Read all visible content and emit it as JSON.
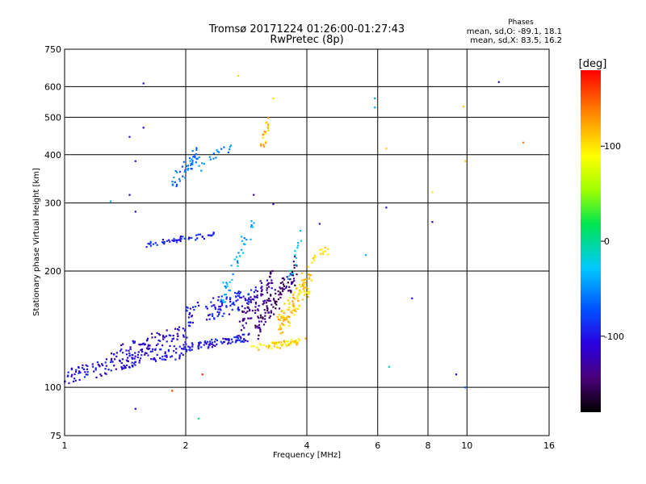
{
  "chart_data": {
    "type": "scatter",
    "title": "Tromsø 20171224 01:26:00-01:27:43",
    "subtitle": "RwPretec (8p)",
    "xlabel": "Frequency [MHz]",
    "ylabel": "Stationary phase Virtual Height [km]",
    "xscale": "log",
    "yscale": "log",
    "xlim": [
      1,
      16
    ],
    "ylim": [
      75,
      750
    ],
    "x_ticks": [
      1,
      2,
      4,
      6,
      8,
      10,
      16
    ],
    "x_tick_labels": [
      "1",
      "2",
      "4",
      "6",
      "8",
      "10",
      "16"
    ],
    "y_ticks": [
      75,
      100,
      200,
      300,
      400,
      500,
      600,
      750
    ],
    "y_tick_labels": [
      "75",
      "100",
      "200",
      "300",
      "400",
      "500",
      "600",
      "750"
    ],
    "grid": true,
    "stats": {
      "title": "Phases",
      "line_o": "mean, sd,O: -89.1, 18.1",
      "line_x": "mean, sd,X:  83.5, 16.2"
    },
    "colorbar": {
      "label": "[deg]",
      "range": [
        -180,
        180
      ],
      "ticks": [
        100,
        0,
        -100
      ],
      "tick_labels": [
        "100",
        "0",
        "-100"
      ],
      "placement": "right"
    },
    "traces": [
      {
        "x0": 1.0,
        "x1": 2.0,
        "h0": 105,
        "h1": 128,
        "phase": -105,
        "n": 150,
        "jit": 0.045
      },
      {
        "x0": 1.3,
        "x1": 2.0,
        "h0": 118,
        "h1": 142,
        "phase": -110,
        "n": 90,
        "jit": 0.05
      },
      {
        "x0": 2.0,
        "x1": 2.9,
        "h0": 126,
        "h1": 136,
        "phase": -100,
        "n": 90,
        "jit": 0.02
      },
      {
        "x0": 2.0,
        "x1": 3.0,
        "h0": 150,
        "h1": 175,
        "phase": -95,
        "n": 110,
        "jit": 0.06
      },
      {
        "x0": 1.58,
        "x1": 2.35,
        "h0": 234,
        "h1": 250,
        "phase": -95,
        "n": 55,
        "jit": 0.015
      },
      {
        "x0": 1.85,
        "x1": 2.15,
        "h0": 330,
        "h1": 410,
        "phase": -60,
        "n": 45,
        "jit": 0.04
      },
      {
        "x0": 2.15,
        "x1": 2.6,
        "h0": 370,
        "h1": 430,
        "phase": -55,
        "n": 18,
        "jit": 0.03
      },
      {
        "x0": 2.45,
        "x1": 2.95,
        "h0": 160,
        "h1": 280,
        "phase": -40,
        "n": 40,
        "jit": 0.05
      },
      {
        "x0": 2.7,
        "x1": 3.3,
        "h0": 140,
        "h1": 200,
        "phase": -135,
        "n": 70,
        "jit": 0.06
      },
      {
        "x0": 3.0,
        "x1": 3.8,
        "h0": 140,
        "h1": 210,
        "phase": -145,
        "n": 110,
        "jit": 0.07
      },
      {
        "x0": 2.9,
        "x1": 4.0,
        "h0": 126,
        "h1": 132,
        "phase": 105,
        "n": 60,
        "jit": 0.02
      },
      {
        "x0": 3.4,
        "x1": 4.1,
        "h0": 140,
        "h1": 200,
        "phase": 110,
        "n": 110,
        "jit": 0.07
      },
      {
        "x0": 4.1,
        "x1": 4.5,
        "h0": 210,
        "h1": 230,
        "phase": 100,
        "n": 15,
        "jit": 0.03
      },
      {
        "x0": 3.1,
        "x1": 3.2,
        "h0": 420,
        "h1": 490,
        "phase": 115,
        "n": 22,
        "jit": 0.03
      },
      {
        "x0": 3.6,
        "x1": 3.9,
        "h0": 180,
        "h1": 260,
        "phase": -20,
        "n": 14,
        "jit": 0.06
      }
    ],
    "isolated_points": [
      {
        "x": 1.57,
        "y": 612,
        "phase": -120
      },
      {
        "x": 1.57,
        "y": 470,
        "phase": -110
      },
      {
        "x": 1.45,
        "y": 445,
        "phase": -100
      },
      {
        "x": 1.5,
        "y": 385,
        "phase": -105
      },
      {
        "x": 1.45,
        "y": 315,
        "phase": -120
      },
      {
        "x": 1.5,
        "y": 285,
        "phase": -125
      },
      {
        "x": 1.3,
        "y": 303,
        "phase": -40
      },
      {
        "x": 1.5,
        "y": 88,
        "phase": -110
      },
      {
        "x": 1.85,
        "y": 98,
        "phase": 160
      },
      {
        "x": 2.2,
        "y": 108,
        "phase": 170
      },
      {
        "x": 2.15,
        "y": 83,
        "phase": 10
      },
      {
        "x": 2.7,
        "y": 640,
        "phase": 100
      },
      {
        "x": 3.3,
        "y": 560,
        "phase": 100
      },
      {
        "x": 5.9,
        "y": 560,
        "phase": -40
      },
      {
        "x": 5.9,
        "y": 530,
        "phase": -45
      },
      {
        "x": 5.6,
        "y": 220,
        "phase": -40
      },
      {
        "x": 6.3,
        "y": 415,
        "phase": 110
      },
      {
        "x": 6.3,
        "y": 292,
        "phase": -110
      },
      {
        "x": 6.4,
        "y": 113,
        "phase": -10
      },
      {
        "x": 7.3,
        "y": 170,
        "phase": -100
      },
      {
        "x": 8.2,
        "y": 320,
        "phase": 100
      },
      {
        "x": 8.2,
        "y": 268,
        "phase": -130
      },
      {
        "x": 9.4,
        "y": 108,
        "phase": -130
      },
      {
        "x": 9.9,
        "y": 100,
        "phase": -70
      },
      {
        "x": 9.8,
        "y": 533,
        "phase": 110
      },
      {
        "x": 9.9,
        "y": 385,
        "phase": 110
      },
      {
        "x": 12.0,
        "y": 617,
        "phase": -120
      },
      {
        "x": 13.8,
        "y": 430,
        "phase": 140
      },
      {
        "x": 4.3,
        "y": 265,
        "phase": -120
      },
      {
        "x": 2.95,
        "y": 315,
        "phase": -130
      },
      {
        "x": 3.3,
        "y": 298,
        "phase": -130
      }
    ]
  }
}
